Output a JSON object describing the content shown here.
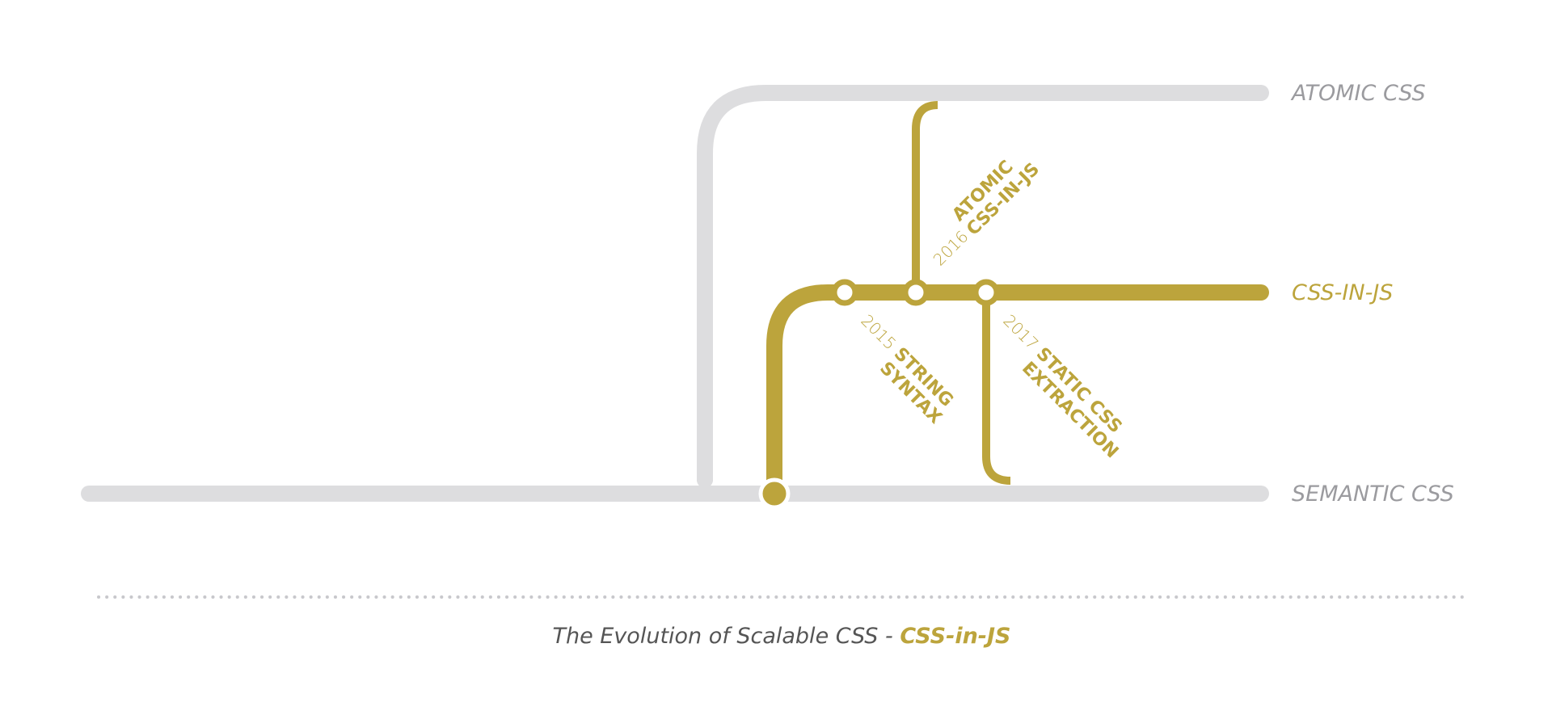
{
  "colors": {
    "gray_line": "#dddddf",
    "gold_line": "#bca43c",
    "gray_text": "#9b9b9f",
    "caption_text": "#555555"
  },
  "lines": {
    "atomic_css": "ATOMIC CSS",
    "css_in_js": "CSS-IN-JS",
    "semantic_css": "SEMANTIC CSS"
  },
  "stops": {
    "atomic_css_in_js": {
      "year": "2016",
      "label_line1": "ATOMIC",
      "label_line2": "CSS-IN-JS"
    },
    "string_syntax": {
      "year": "2015",
      "label_line1": "STRING",
      "label_line2": "SYNTAX"
    },
    "static_css_extraction": {
      "year": "2017",
      "label_line1": "STATIC CSS",
      "label_line2": "EXTRACTION"
    }
  },
  "caption": {
    "prefix": "The Evolution of Scalable CSS - ",
    "highlight": "CSS-in-JS"
  }
}
